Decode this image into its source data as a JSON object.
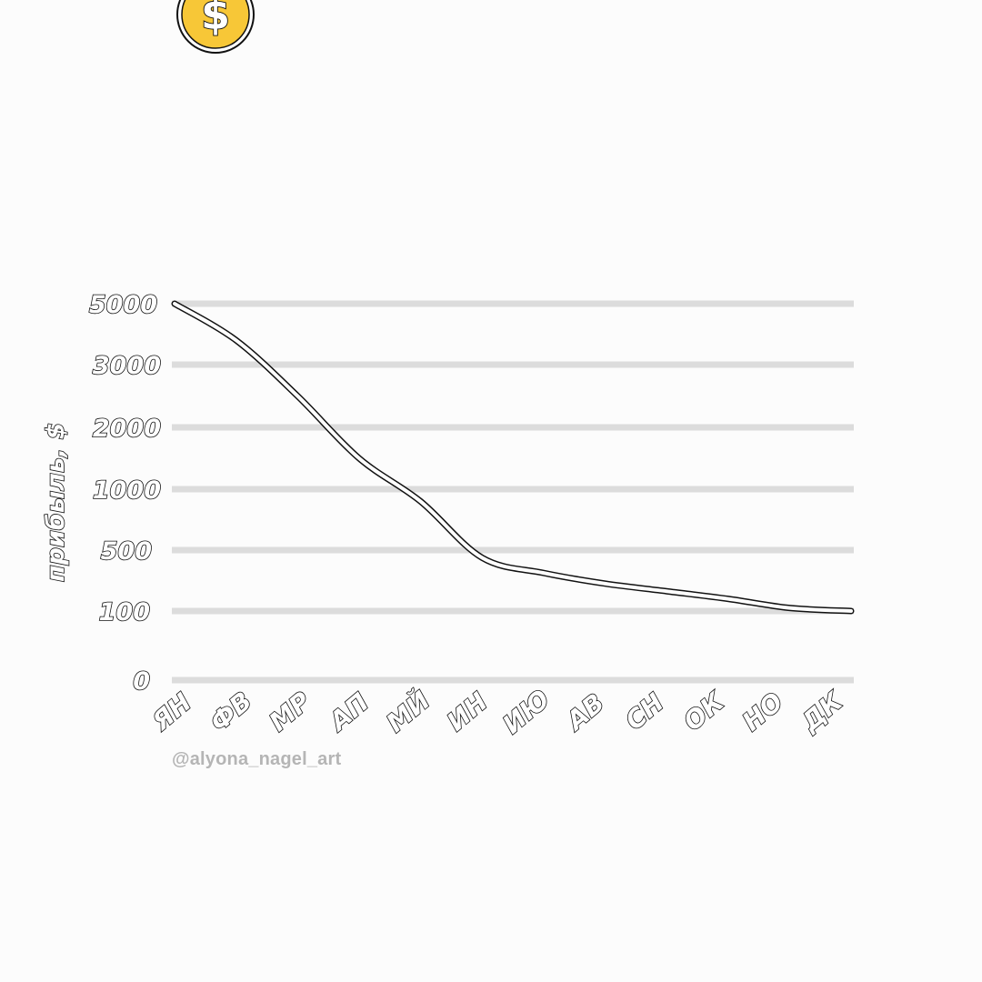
{
  "coin": {
    "symbol": "$",
    "color": "#f7c737"
  },
  "watermark": "@alyona_nagel_art",
  "chart_data": {
    "type": "line",
    "title": "",
    "xlabel": "",
    "ylabel": "прибыль, $",
    "categories": [
      "ЯН",
      "ФВ",
      "МР",
      "АП",
      "МЙ",
      "ИН",
      "ИЮ",
      "АВ",
      "СН",
      "ОК",
      "НО",
      "ДК"
    ],
    "y_ticks": [
      "0",
      "100",
      "500",
      "1000",
      "2000",
      "3000",
      "5000"
    ],
    "y_scale": "ordinal ticks (evenly spaced labels)",
    "series": [
      {
        "values": [
          5000,
          3800,
          2500,
          1500,
          900,
          450,
          350,
          280,
          230,
          180,
          120,
          100
        ]
      }
    ],
    "grid": true,
    "gridline_color": "#dcdcdc",
    "line_color": "#ffffff",
    "outline_color": "#111111"
  }
}
